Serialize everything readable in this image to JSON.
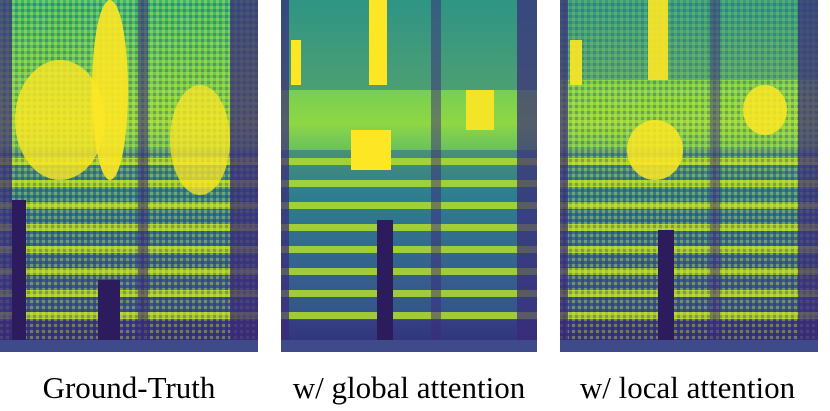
{
  "figure": {
    "captions": [
      "Ground-Truth",
      "w/ global attention",
      "w/ local attention"
    ]
  }
}
